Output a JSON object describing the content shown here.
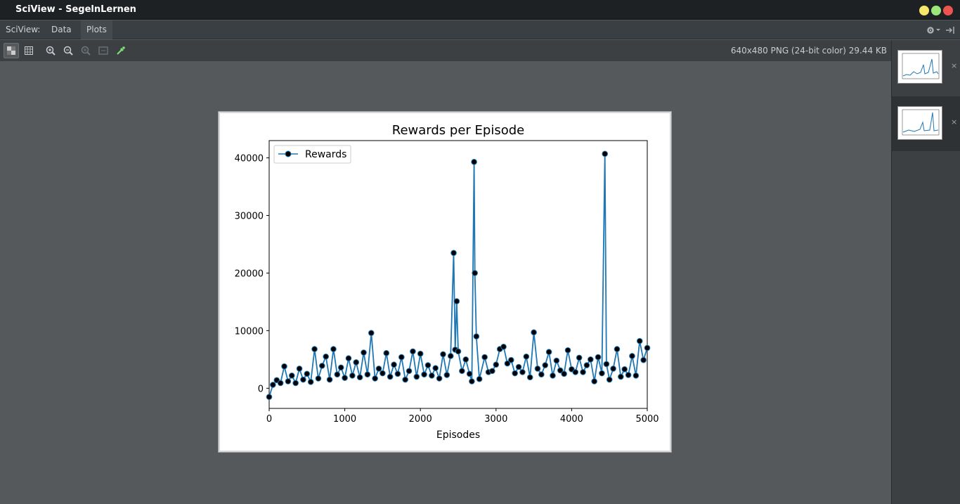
{
  "window": {
    "title": "SciView - SegelnLernen"
  },
  "colors": {
    "close": "#ef5350",
    "maximize": "#9be67b",
    "minimize": "#f5e86a",
    "series": "#1f77b4"
  },
  "menu": {
    "items": [
      "SciView:",
      "Data",
      "Plots"
    ]
  },
  "toolbar": {
    "icons": [
      "checker-icon",
      "grid-icon",
      "zoom-in-icon",
      "zoom-out-icon",
      "zoom-actual-icon",
      "fit-icon",
      "color-picker-icon"
    ],
    "image_info": "640x480 PNG (24-bit color) 29.44 KB"
  },
  "sidebar": {
    "thumbnails": [
      {
        "close": "×"
      },
      {
        "close": "×"
      }
    ]
  },
  "chart_data": {
    "type": "line",
    "title": "Rewards per Episode",
    "xlabel": "Episodes",
    "ylabel": "",
    "xlim": [
      0,
      5000
    ],
    "ylim": [
      -3500,
      43000
    ],
    "xticks": [
      "0",
      "1000",
      "2000",
      "3000",
      "4000",
      "5000"
    ],
    "yticks": [
      "0",
      "10000",
      "20000",
      "30000",
      "40000"
    ],
    "legend": "upper-left",
    "series": [
      {
        "name": "Rewards",
        "marker": "circle",
        "x": [
          0,
          50,
          100,
          150,
          200,
          250,
          300,
          350,
          400,
          450,
          500,
          550,
          600,
          650,
          700,
          750,
          800,
          850,
          900,
          950,
          1000,
          1050,
          1100,
          1150,
          1200,
          1250,
          1300,
          1350,
          1400,
          1450,
          1500,
          1550,
          1600,
          1650,
          1700,
          1750,
          1800,
          1850,
          1900,
          1950,
          2000,
          2050,
          2100,
          2150,
          2200,
          2250,
          2300,
          2350,
          2400,
          2440,
          2460,
          2480,
          2500,
          2550,
          2600,
          2650,
          2680,
          2710,
          2720,
          2740,
          2780,
          2850,
          2900,
          2950,
          3000,
          3050,
          3100,
          3150,
          3200,
          3250,
          3300,
          3350,
          3400,
          3450,
          3500,
          3550,
          3600,
          3650,
          3700,
          3750,
          3800,
          3850,
          3900,
          3950,
          4000,
          4050,
          4100,
          4150,
          4200,
          4250,
          4300,
          4350,
          4400,
          4440,
          4460,
          4500,
          4550,
          4600,
          4650,
          4700,
          4750,
          4800,
          4850,
          4900,
          4950,
          5000
        ],
        "y": [
          -1500,
          600,
          1400,
          900,
          3800,
          1200,
          2200,
          900,
          3400,
          1500,
          2500,
          1100,
          6800,
          1700,
          3900,
          5500,
          1500,
          6800,
          2400,
          3600,
          1800,
          5200,
          2200,
          4500,
          1900,
          6200,
          2400,
          9600,
          1700,
          3400,
          2600,
          6100,
          2000,
          4100,
          2500,
          5400,
          1500,
          3000,
          6400,
          2000,
          6000,
          2400,
          4000,
          2200,
          3500,
          1700,
          5900,
          2300,
          5600,
          23500,
          6700,
          15100,
          6400,
          3000,
          5000,
          2500,
          1200,
          39300,
          20000,
          9000,
          1600,
          5400,
          2800,
          3000,
          4100,
          6800,
          7200,
          4300,
          4900,
          2600,
          3700,
          2800,
          5500,
          1900,
          9700,
          3400,
          2400,
          4000,
          6300,
          2200,
          4800,
          3100,
          2500,
          6600,
          3300,
          2800,
          5300,
          2800,
          4000,
          5000,
          1200,
          5400,
          2600,
          40700,
          4200,
          1500,
          3400,
          6800,
          2000,
          3300,
          2300,
          5600,
          2200,
          8200,
          4900,
          7000
        ]
      }
    ]
  }
}
